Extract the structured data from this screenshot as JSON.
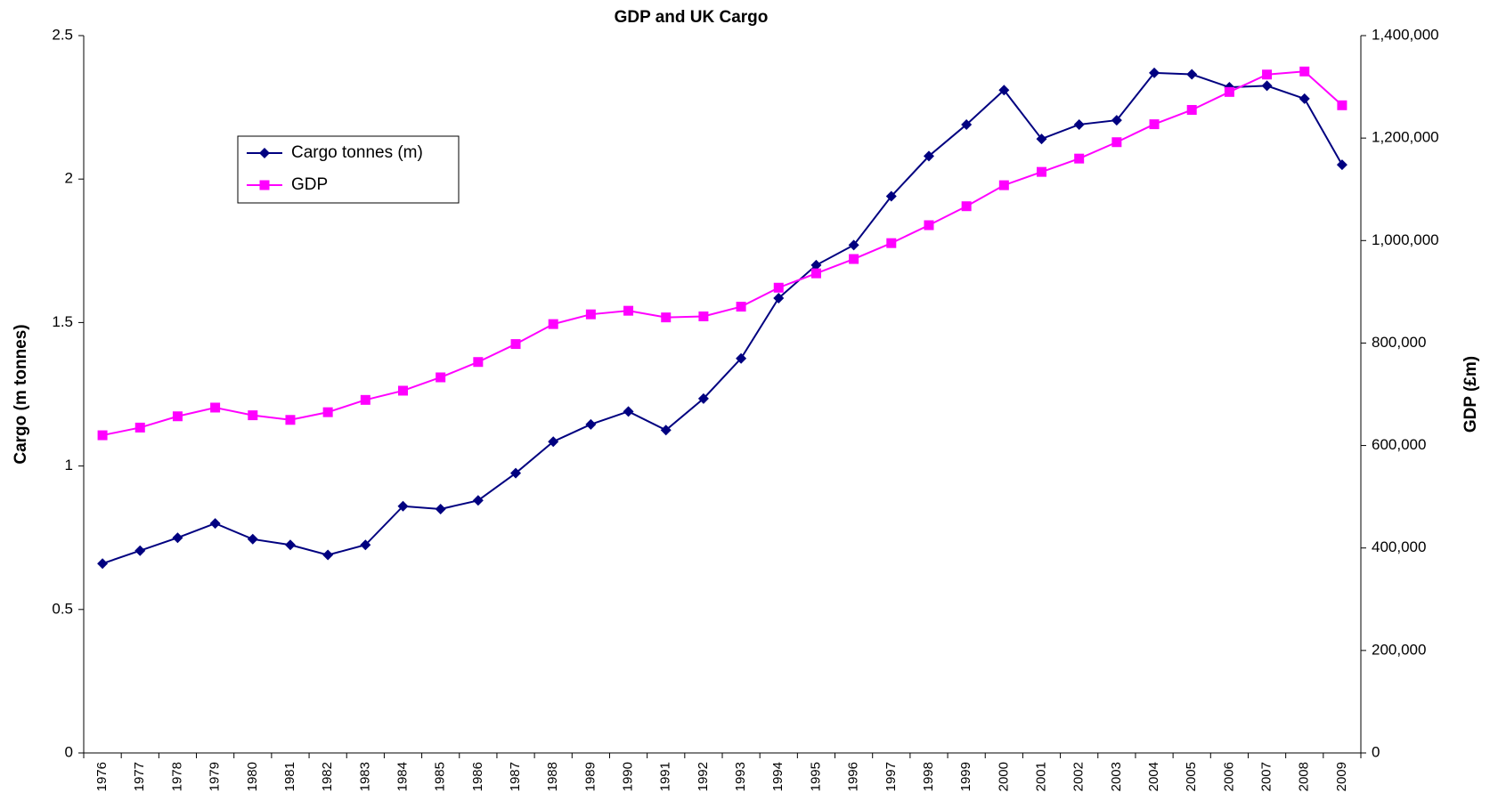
{
  "chart_data": {
    "type": "line",
    "title": "GDP and UK Cargo",
    "ylabel": "Cargo (m tonnes)",
    "y2label": "GDP (£m)",
    "categories": [
      "1976",
      "1977",
      "1978",
      "1979",
      "1980",
      "1981",
      "1982",
      "1983",
      "1984",
      "1985",
      "1986",
      "1987",
      "1988",
      "1989",
      "1990",
      "1991",
      "1992",
      "1993",
      "1994",
      "1995",
      "1996",
      "1997",
      "1998",
      "1999",
      "2000",
      "2001",
      "2002",
      "2003",
      "2004",
      "2005",
      "2006",
      "2007",
      "2008",
      "2009"
    ],
    "series": [
      {
        "name": "Cargo tonnes (m)",
        "color": "#000080",
        "marker": "diamond",
        "values": [
          0.66,
          0.705,
          0.75,
          0.8,
          0.745,
          0.725,
          0.69,
          0.725,
          0.86,
          0.85,
          0.88,
          0.975,
          1.085,
          1.145,
          1.19,
          1.125,
          1.235,
          1.375,
          1.585,
          1.7,
          1.77,
          1.94,
          2.08,
          2.19,
          2.31,
          2.14,
          2.19,
          2.205,
          2.37,
          2.365,
          2.32,
          2.325,
          2.28,
          2.05
        ]
      },
      {
        "name": "GDP",
        "color": "#ff00ff",
        "marker": "square",
        "axis": "y2",
        "values": [
          620000,
          635000,
          657000,
          674000,
          659000,
          650000,
          665000,
          689000,
          707000,
          733000,
          763000,
          798000,
          837000,
          856000,
          863000,
          850000,
          852000,
          871000,
          908000,
          936000,
          964000,
          995000,
          1030000,
          1067000,
          1108000,
          1134000,
          1160000,
          1192000,
          1227000,
          1255000,
          1290000,
          1324000,
          1330000,
          1264000
        ]
      }
    ],
    "ylim": [
      0,
      2.5
    ],
    "yticks": [
      0,
      0.5,
      1,
      1.5,
      2,
      2.5
    ],
    "y2lim": [
      0,
      1400000
    ],
    "y2ticks": [
      0,
      {
        "value": 200000,
        "label": "200,000"
      },
      {
        "value": 400000,
        "label": "400,000"
      },
      {
        "value": 600000,
        "label": "600,000"
      },
      {
        "value": 800000,
        "label": "800,000"
      },
      {
        "value": 1000000,
        "label": "1,000,000"
      },
      {
        "value": 1200000,
        "label": "1,200,000"
      },
      {
        "value": 1400000,
        "label": "1,400,000"
      }
    ],
    "grid": false,
    "legend": "upper left"
  }
}
